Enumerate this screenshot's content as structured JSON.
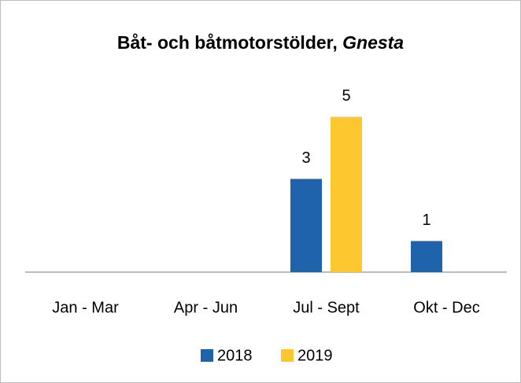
{
  "chart_data": {
    "type": "bar",
    "title": [
      "Båt- och båtmotorstölder, ",
      "Gnesta"
    ],
    "categories": [
      "Jan - Mar",
      "Apr - Jun",
      "Jul - Sept",
      "Okt - Dec"
    ],
    "series": [
      {
        "name": "2018",
        "color": "#1f63ad",
        "values": [
          null,
          null,
          3,
          1
        ]
      },
      {
        "name": "2019",
        "color": "#fdc82f",
        "values": [
          null,
          null,
          5,
          null
        ]
      }
    ],
    "ylim": [
      0,
      6
    ],
    "legend": "bottom"
  }
}
